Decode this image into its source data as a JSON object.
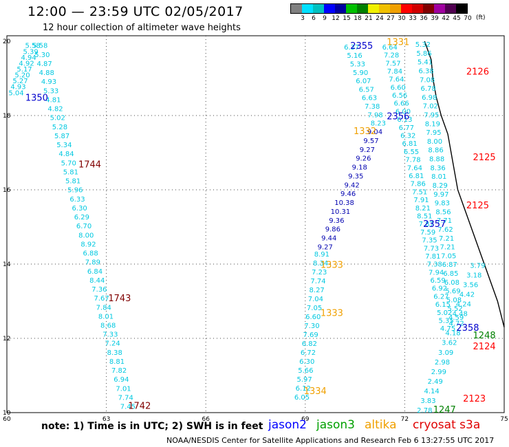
{
  "title": "12:00 — 23:59 UTC 02/05/2017",
  "subtitle": "12 hour collection of altimeter wave heights",
  "scale": {
    "unit_label": "(ft)",
    "ticks": [
      "3",
      "6",
      "9",
      "12",
      "15",
      "18",
      "21",
      "24",
      "27",
      "30",
      "33",
      "36",
      "39",
      "42",
      "45",
      "70"
    ],
    "colors": [
      "#808080",
      "#00e0ff",
      "#00c0c0",
      "#0000ff",
      "#0000a0",
      "#00c000",
      "#008000",
      "#f0f000",
      "#f0c000",
      "#f0a000",
      "#ff0000",
      "#d00000",
      "#800000",
      "#a000a0",
      "#500050",
      "#000000"
    ]
  },
  "map": {
    "lon_range": [
      60,
      75
    ],
    "lat_range": [
      10,
      20
    ],
    "lon_labels": [
      "60",
      "63",
      "66",
      "69",
      "72",
      "75"
    ],
    "lat_labels": [
      "20",
      "18",
      "16",
      "14",
      "12",
      "10"
    ]
  },
  "passes": [
    {
      "label": "1350",
      "color": "#0000cc",
      "lon": 60.9,
      "lat": 18.4
    },
    {
      "label": "1744",
      "color": "#800000",
      "lon": 62.5,
      "lat": 16.6
    },
    {
      "label": "1743",
      "color": "#800000",
      "lon": 63.4,
      "lat": 13.0
    },
    {
      "label": "1742",
      "color": "#800000",
      "lon": 64.0,
      "lat": 10.1
    },
    {
      "label": "1331",
      "color": "#f0a000",
      "lon": 71.8,
      "lat": 19.9
    },
    {
      "label": "2355",
      "color": "#0000cc",
      "lon": 70.7,
      "lat": 19.8
    },
    {
      "label": "2356",
      "color": "#0000cc",
      "lon": 71.8,
      "lat": 17.9
    },
    {
      "label": "1332",
      "color": "#f0a000",
      "lon": 70.8,
      "lat": 17.5
    },
    {
      "label": "1333",
      "color": "#f0a000",
      "lon": 69.8,
      "lat": 13.9
    },
    {
      "label": "1333",
      "color": "#f0a000",
      "lon": 69.8,
      "lat": 12.6
    },
    {
      "label": "1334",
      "color": "#f0a000",
      "lon": 69.3,
      "lat": 10.5
    },
    {
      "label": "2357",
      "color": "#0000cc",
      "lon": 72.9,
      "lat": 15.0
    },
    {
      "label": "2126",
      "color": "#ff0000",
      "lon": 74.2,
      "lat": 19.1
    },
    {
      "label": "2125",
      "color": "#ff0000",
      "lon": 74.4,
      "lat": 16.8
    },
    {
      "label": "2125",
      "color": "#ff0000",
      "lon": 74.2,
      "lat": 15.5
    },
    {
      "label": "2358",
      "color": "#0000cc",
      "lon": 73.9,
      "lat": 12.2
    },
    {
      "label": "1248",
      "color": "#008000",
      "lon": 74.4,
      "lat": 12.0
    },
    {
      "label": "2124",
      "color": "#ff0000",
      "lon": 74.4,
      "lat": 11.7
    },
    {
      "label": "2123",
      "color": "#ff0000",
      "lon": 74.1,
      "lat": 10.3
    },
    {
      "label": "1247",
      "color": "#008000",
      "lon": 73.2,
      "lat": 10.0
    }
  ],
  "tracks": [
    {
      "color": "#00c8e0",
      "values": [
        "5.58",
        "5.39",
        "4.94",
        "4.92",
        "5.17",
        "5.20",
        "5.27",
        "4.93",
        "5.04"
      ],
      "lon_start": 60.78,
      "lat_start": 19.82,
      "lon_end": 60.28,
      "lat_end": 18.55
    },
    {
      "color": "#00c8e0",
      "values": [
        "5.58",
        "5.30",
        "4.87",
        "4.88",
        "4.93",
        "5.33",
        "4.81",
        "4.82",
        "5.02",
        "5.28",
        "5.87",
        "5.34",
        "4.84",
        "5.70",
        "5.81",
        "5.81",
        "5.96",
        "6.33",
        "6.30",
        "6.29",
        "6.70",
        "8.00",
        "8.92",
        "6.88",
        "7.89",
        "6.84",
        "8.44",
        "7.36",
        "7.67",
        "7.84",
        "8.01",
        "8.68",
        "7.33",
        "7.24",
        "8.38",
        "8.81",
        "7.82",
        "6.94",
        "7.01",
        "7.74",
        "7.45"
      ],
      "lon_start": 61.0,
      "lat_start": 19.82,
      "lon_end": 63.65,
      "lat_end": 10.1
    },
    {
      "color": "#00c8e0",
      "values": [
        "6.37",
        "5.16",
        "5.33",
        "5.90",
        "6.07",
        "6.57",
        "6.63",
        "7.38",
        "7.98",
        "8.23"
      ],
      "lon_start": 70.4,
      "lat_start": 19.78,
      "lon_end": 71.2,
      "lat_end": 17.73
    },
    {
      "color": "#0000b0",
      "values": [
        "9.04",
        "9.57",
        "9.27",
        "9.26",
        "9.18",
        "9.35",
        "9.42",
        "9.46",
        "10.38",
        "10.31",
        "9.36",
        "9.86",
        "9.44",
        "9.27"
      ],
      "lon_start": 71.1,
      "lat_start": 17.5,
      "lon_end": 69.6,
      "lat_end": 14.4
    },
    {
      "color": "#00c8e0",
      "values": [
        "8.91",
        "8.34",
        "7.23",
        "7.74",
        "8.27",
        "7.04",
        "7.05",
        "6.60",
        "7.30",
        "7.69",
        "6.82",
        "6.72",
        "6.30",
        "5.66",
        "5.97",
        "6.12",
        "6.05"
      ],
      "lon_start": 69.5,
      "lat_start": 14.2,
      "lon_end": 68.9,
      "lat_end": 10.35
    },
    {
      "color": "#00c8e0",
      "values": [
        "6.64",
        "7.28",
        "7.57",
        "7.84",
        "7.64",
        "6.60",
        "6.56",
        "6.66",
        "6.00",
        "6.13",
        "6.77",
        "6.32",
        "6.81",
        "6.55",
        "7.78",
        "7.64",
        "6.81",
        "7.86",
        "7.51",
        "7.91",
        "8.21",
        "8.51",
        "7.87",
        "7.59",
        "7.35",
        "7.73",
        "7.81",
        "7.38",
        "7.94",
        "6.59",
        "6.92",
        "6.27",
        "6.15",
        "5.02",
        "5.35",
        "4.75"
      ],
      "lon_start": 71.55,
      "lat_start": 19.78,
      "lon_end": 73.3,
      "lat_end": 12.2
    },
    {
      "color": "#00c8e0",
      "values": [
        "5.32",
        "5.86",
        "5.41",
        "6.38",
        "7.08",
        "6.78",
        "6.98",
        "7.02",
        "7.95",
        "8.19",
        "7.95",
        "8.00",
        "8.86",
        "8.88",
        "8.36",
        "8.01",
        "8.29",
        "9.97",
        "9.83",
        "8.56",
        "7.71",
        "7.62",
        "7.21",
        "7.21",
        "7.05",
        "6.87",
        "6.85",
        "6.08",
        "5.69",
        "5.08",
        "5.52",
        "4.59"
      ],
      "lon_start": 72.55,
      "lat_start": 19.85,
      "lon_end": 73.55,
      "lat_end": 12.5
    },
    {
      "color": "#00c8e0",
      "values": [
        "3.79",
        "3.18",
        "3.56",
        "4.42",
        "4.24",
        "4.48",
        "4.72",
        "4.18",
        "3.62",
        "3.09",
        "2.98",
        "2.99",
        "2.49",
        "4.14",
        "3.83",
        "2.78"
      ],
      "lon_start": 74.2,
      "lat_start": 13.9,
      "lon_end": 72.6,
      "lat_end": 10.0
    }
  ],
  "footer": {
    "note": "note: 1) Time is in UTC; 2) SWH is in feet",
    "legend": [
      {
        "label": "jason2",
        "color": "#0000ff"
      },
      {
        "label": "jason3",
        "color": "#00a000"
      },
      {
        "label": "altika",
        "color": "#f0a000"
      },
      {
        "label": "cryosat s3a",
        "color": "#e00000"
      }
    ],
    "credit": "NOAA/NESDIS Center for Satellite Applications and Research    Feb  6 13:27:55 UTC 2017"
  }
}
